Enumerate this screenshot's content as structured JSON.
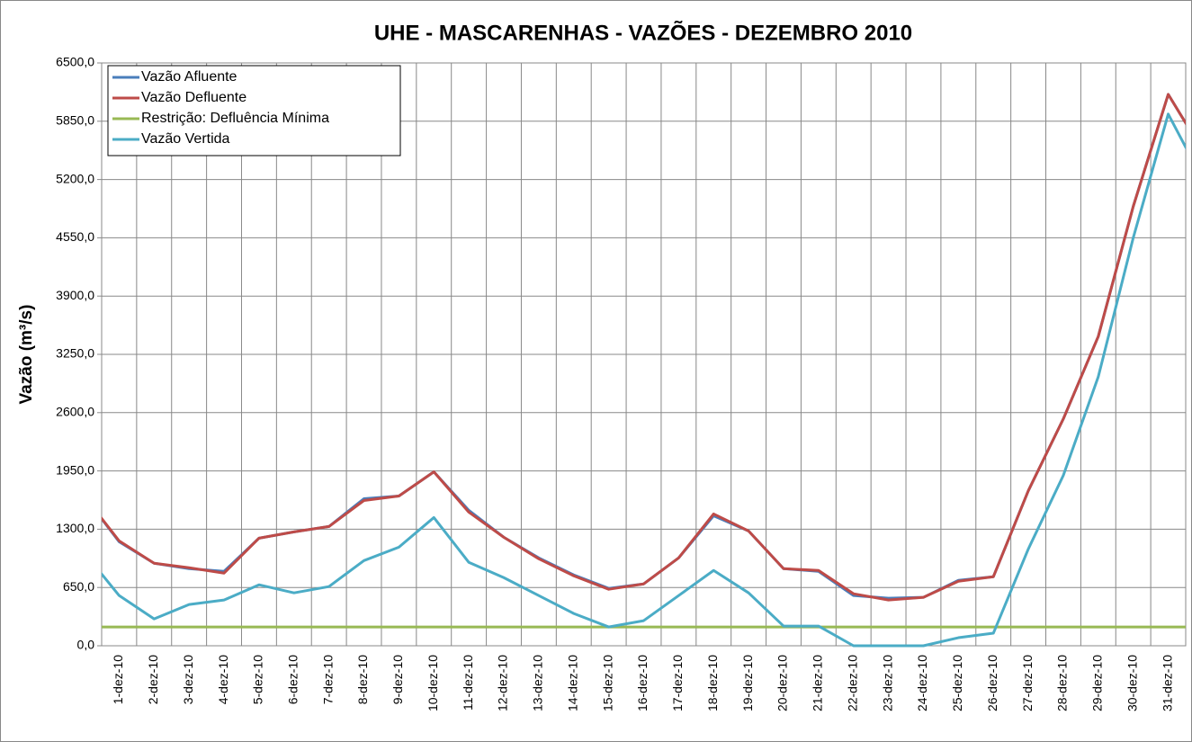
{
  "chart_data": {
    "type": "line",
    "title": "UHE - MASCARENHAS - VAZÕES -  DEZEMBRO 2010",
    "y_label": "Vazão (m³/s)",
    "categories": [
      null,
      "1-dez-10",
      "2-dez-10",
      "3-dez-10",
      "4-dez-10",
      "5-dez-10",
      "6-dez-10",
      "7-dez-10",
      "8-dez-10",
      "9-dez-10",
      "10-dez-10",
      "11-dez-10",
      "12-dez-10",
      "13-dez-10",
      "14-dez-10",
      "15-dez-10",
      "16-dez-10",
      "17-dez-10",
      "18-dez-10",
      "19-dez-10",
      "20-dez-10",
      "21-dez-10",
      "22-dez-10",
      "23-dez-10",
      "24-dez-10",
      "25-dez-10",
      "26-dez-10",
      "27-dez-10",
      "28-dez-10",
      "29-dez-10",
      "30-dez-10",
      "31-dez-10",
      null
    ],
    "series": [
      {
        "name": "Vazão Afluente",
        "color": "#4a7ebb",
        "values": [
          1670,
          1160,
          920,
          860,
          830,
          1200,
          1270,
          1330,
          1640,
          1670,
          1940,
          1510,
          1210,
          980,
          790,
          640,
          690,
          980,
          1450,
          1280,
          860,
          830,
          560,
          530,
          540,
          730,
          770,
          1730,
          2530,
          3450,
          4900,
          6150,
          5510
        ]
      },
      {
        "name": "Vazão Defluente",
        "color": "#be4b48",
        "values": [
          1670,
          1170,
          920,
          870,
          810,
          1200,
          1270,
          1330,
          1620,
          1670,
          1940,
          1490,
          1210,
          970,
          780,
          630,
          690,
          980,
          1470,
          1280,
          860,
          840,
          580,
          510,
          540,
          720,
          770,
          1730,
          2530,
          3450,
          4900,
          6150,
          5510
        ]
      },
      {
        "name": "Restrição: Defluência Mínima",
        "color": "#98b954",
        "values": [
          210,
          210,
          210,
          210,
          210,
          210,
          210,
          210,
          210,
          210,
          210,
          210,
          210,
          210,
          210,
          210,
          210,
          210,
          210,
          210,
          210,
          210,
          210,
          210,
          210,
          210,
          210,
          210,
          210,
          210,
          210,
          210,
          210
        ]
      },
      {
        "name": "Vazão Vertida",
        "color": "#4bacc6",
        "values": [
          1040,
          560,
          300,
          460,
          510,
          680,
          590,
          660,
          950,
          1100,
          1430,
          930,
          760,
          560,
          360,
          210,
          280,
          560,
          840,
          590,
          220,
          220,
          0,
          0,
          0,
          90,
          140,
          1080,
          1900,
          3000,
          4550,
          5930,
          5190
        ]
      }
    ],
    "ylim": [
      0,
      6500
    ],
    "yticks": [
      {
        "value": 0,
        "label": "0,0"
      },
      {
        "value": 650,
        "label": "650,0"
      },
      {
        "value": 1300,
        "label": "1300,0"
      },
      {
        "value": 1950,
        "label": "1950,0"
      },
      {
        "value": 2600,
        "label": "2600,0"
      },
      {
        "value": 3250,
        "label": "3250,0"
      },
      {
        "value": 3900,
        "label": "3900,0"
      },
      {
        "value": 4550,
        "label": "4550,0"
      },
      {
        "value": 5200,
        "label": "5200,0"
      },
      {
        "value": 5850,
        "label": "5850,0"
      },
      {
        "value": 6500,
        "label": "6500,0"
      }
    ],
    "grid": true,
    "legend": "upper left"
  }
}
